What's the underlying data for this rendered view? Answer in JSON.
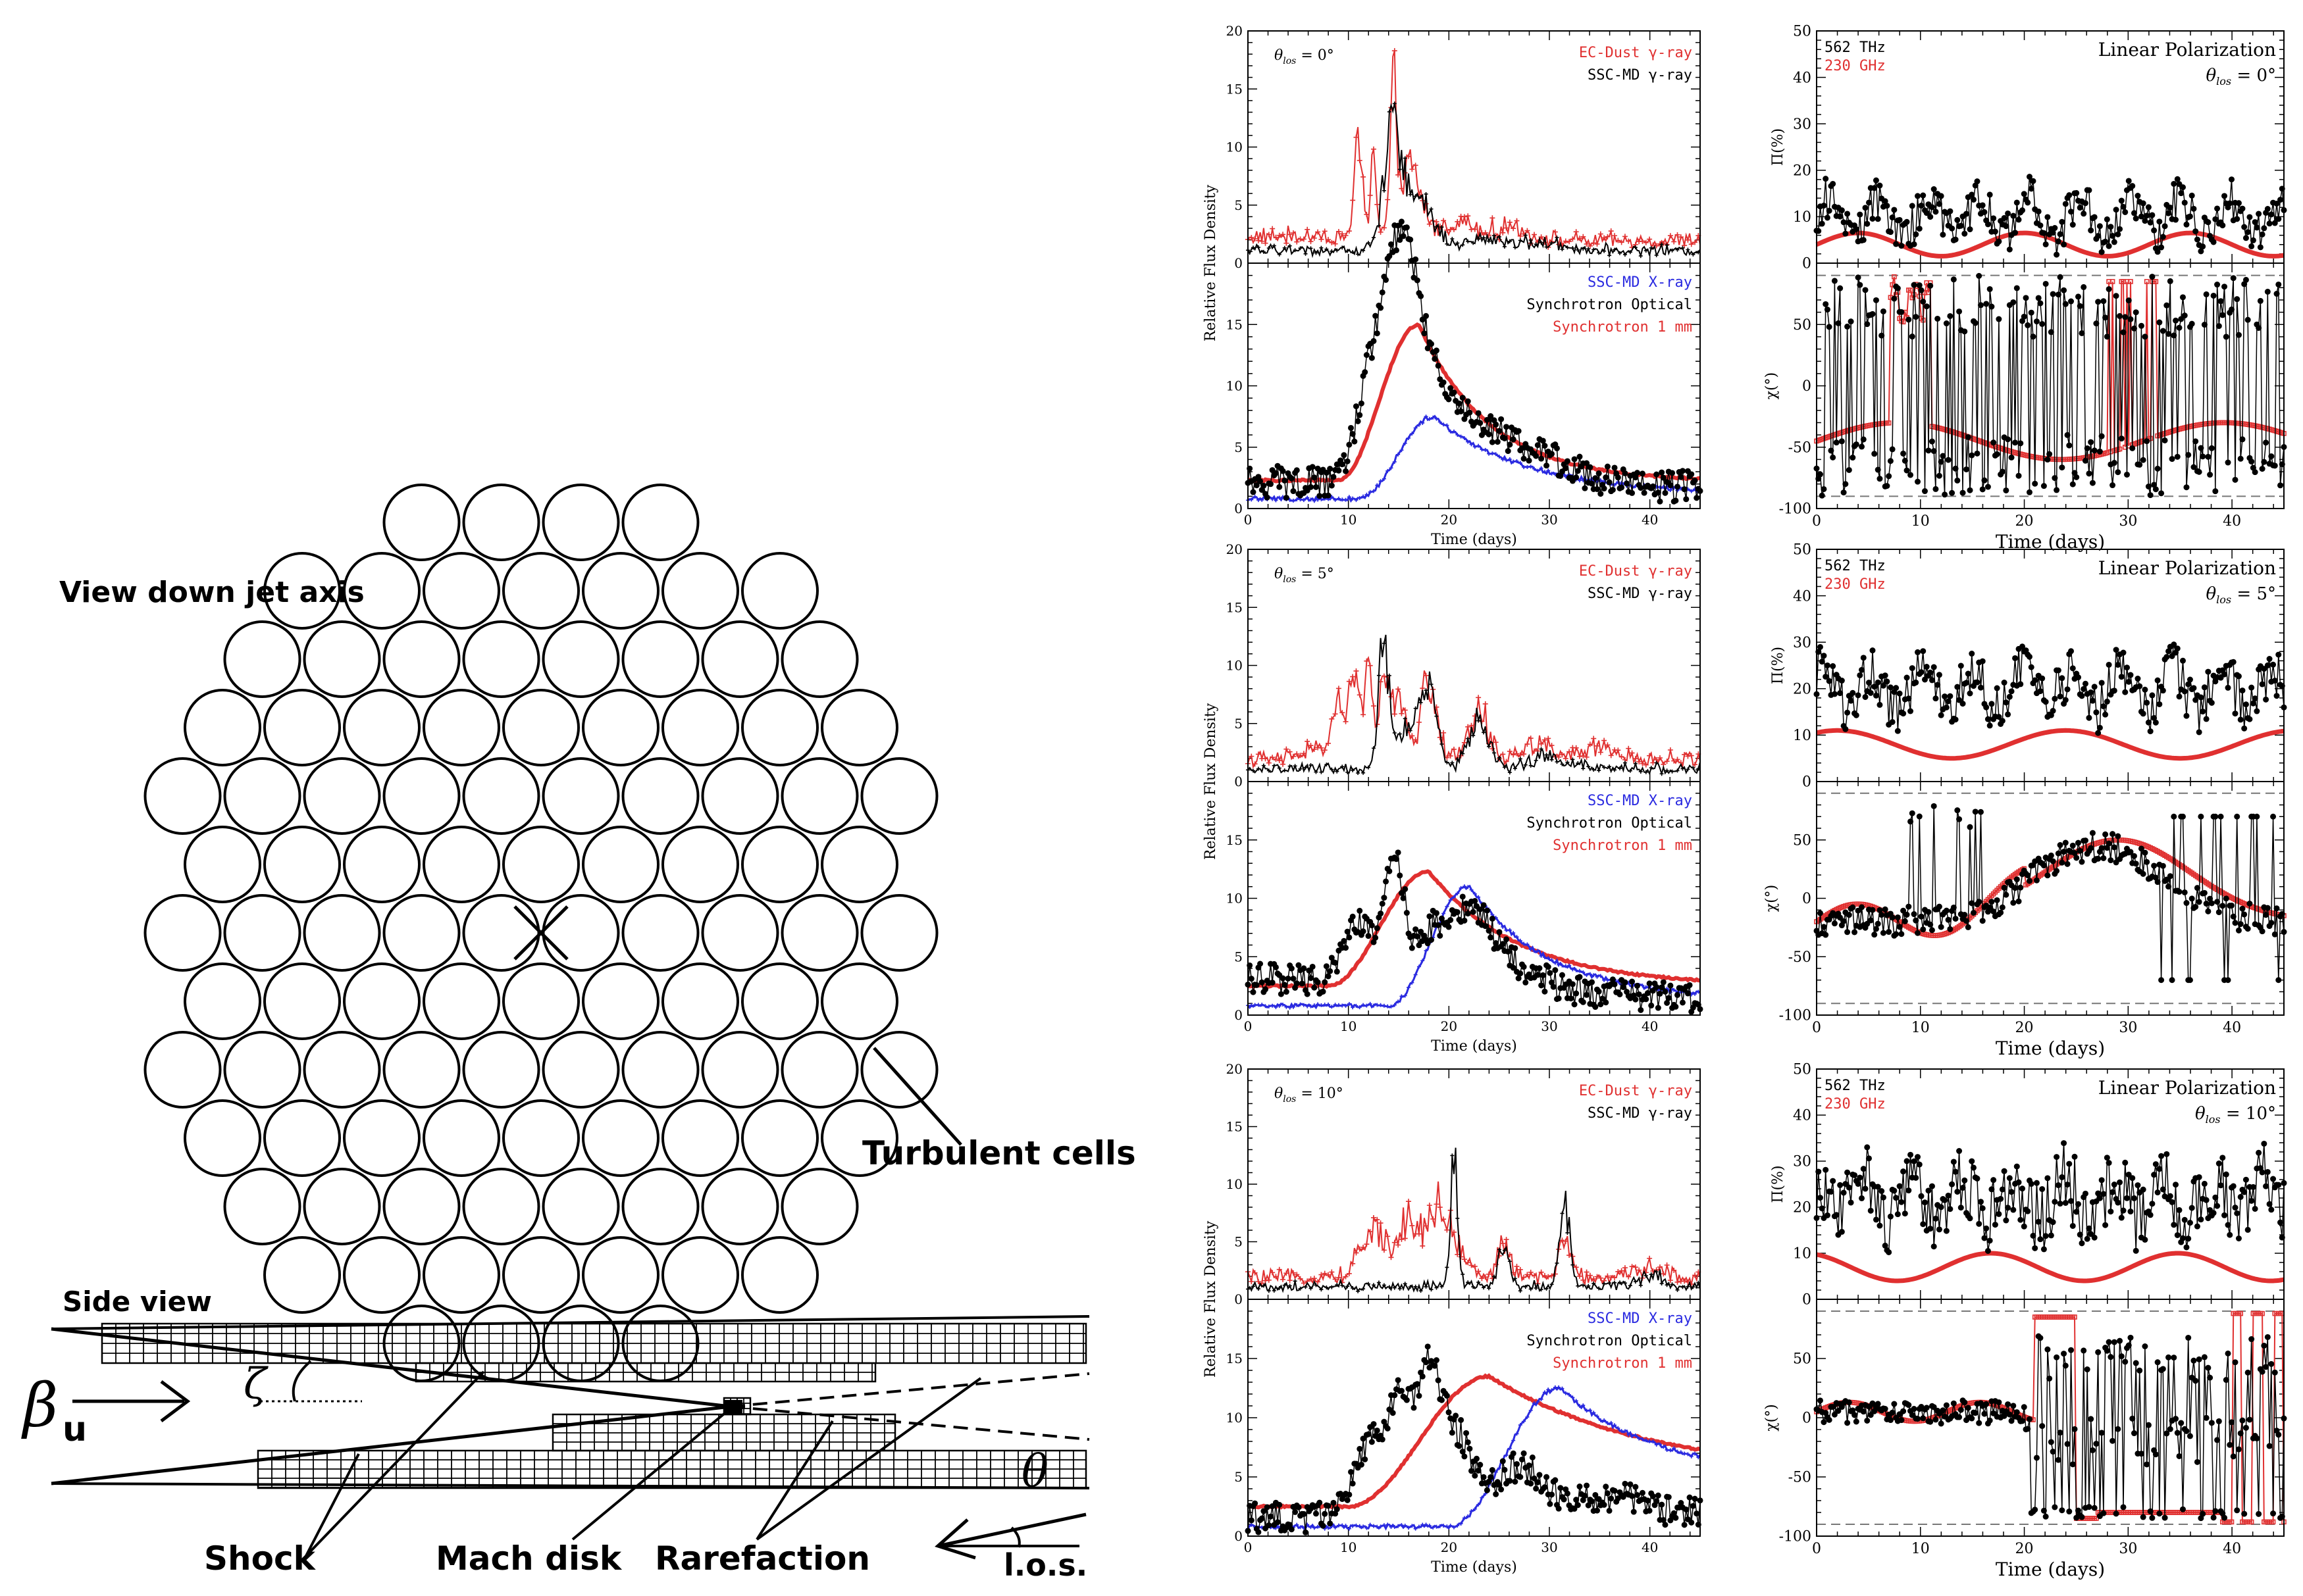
{
  "colors": {
    "black": "#000000",
    "red": "#e03030",
    "blue": "#2a2ae0",
    "grey_dash": "#777777"
  },
  "diagram": {
    "view_label": "View down jet axis",
    "side_label": "Side view",
    "turbulent_label": "Turbulent cells",
    "shock_label": "Shock",
    "mach_label": "Mach disk",
    "rarefaction_label": "Rarefaction",
    "beta_symbol": "β",
    "beta_sub": "u",
    "zeta_symbol": "ζ",
    "theta_symbol": "θ",
    "los_label": "l.o.s."
  },
  "chart_data": {
    "type": "line",
    "x_label": "Time (days)",
    "x_range": [
      0,
      45
    ],
    "x_ticks": [
      "0",
      "10",
      "20",
      "30",
      "40"
    ],
    "flux_ylabel": "Relative Flux Density",
    "pol_ylabel": "Π(%)",
    "chi_ylabel": "χ(°)",
    "gamma_ylim": [
      0,
      20
    ],
    "gamma_ticks": [
      "0",
      "5",
      "10",
      "15",
      "20"
    ],
    "lower_ylim": [
      0,
      20
    ],
    "lower_ticks": [
      "0",
      "5",
      "10",
      "15"
    ],
    "pol_ylim": [
      0,
      50
    ],
    "pol_ticks": [
      "0",
      "10",
      "20",
      "30",
      "40",
      "50"
    ],
    "chi_ylim": [
      -100,
      100
    ],
    "chi_ticks": [
      "-100",
      "-50",
      "0",
      "50"
    ],
    "chi_ref_lines": [
      90,
      -90
    ],
    "legend": {
      "ec_dust": "EC-Dust γ-ray",
      "ssc_gamma": "SSC-MD γ-ray",
      "ssc_xray": "SSC-MD X-ray",
      "sync_opt": "Synchrotron Optical",
      "sync_mm": "Synchrotron 1 mm",
      "freq_opt": "562 THz",
      "freq_mm": "230 GHz",
      "linpol": "Linear Polarization"
    },
    "panels": [
      {
        "theta_label": "θlos = 0°",
        "theta_value": "0°",
        "gamma_ec_peaks": [
          [
            5,
            0.4,
            12
          ],
          [
            11,
            8,
            0.4
          ],
          [
            12.5,
            9,
            0.25
          ],
          [
            14.5,
            10,
            0.3
          ],
          [
            16,
            6,
            1.2
          ],
          [
            21,
            1.5,
            1.5
          ],
          [
            26,
            1,
            2
          ]
        ],
        "gamma_ssc_peaks": [
          [
            14.5,
            10,
            0.9
          ],
          [
            17,
            4,
            1.5
          ],
          [
            24,
            1,
            2.5
          ],
          [
            30,
            0.5,
            2
          ]
        ],
        "xray": {
          "base": 0.8,
          "peak": 7.5,
          "start": 11,
          "rise": 7.5,
          "decay": 9,
          "end": 1.2
        },
        "opt": {
          "base": 2.2,
          "peaks": [
            [
              13,
              11,
              1.8
            ],
            [
              15.5,
              13,
              1.4
            ],
            [
              18,
              7,
              2.0
            ],
            [
              22,
              4,
              3.0
            ],
            [
              28,
              2.5,
              4.0
            ]
          ],
          "end": 1.8
        },
        "mm": {
          "base": 2.3,
          "peak": 15,
          "start": 9,
          "rise": 8,
          "decay": 7,
          "end": 2.2
        },
        "pol_opt": {
          "mean": 10,
          "spread": 6
        },
        "pol_mm": {
          "mean": 4,
          "amp": 2.5,
          "period": 16
        },
        "chi_opt": {
          "mode": "wrapping",
          "center": 10,
          "spread": 70
        },
        "chi_mm": {
          "mode": "wrapping_mm",
          "level": -60
        }
      },
      {
        "theta_label": "θlos = 5°",
        "theta_value": "5°",
        "gamma_ec_peaks": [
          [
            7,
            1,
            1.5
          ],
          [
            9,
            5,
            0.5
          ],
          [
            10.5,
            7,
            0.5
          ],
          [
            12,
            9,
            0.4
          ],
          [
            13.5,
            8,
            0.4
          ],
          [
            15,
            6,
            0.6
          ],
          [
            18,
            7,
            0.8
          ],
          [
            23,
            4,
            1.0
          ],
          [
            29,
            1.5,
            1.5
          ],
          [
            35,
            1,
            1.5
          ]
        ],
        "gamma_ssc_peaks": [
          [
            13.5,
            12,
            0.5
          ],
          [
            16,
            4,
            1.0
          ],
          [
            18,
            7,
            0.8
          ],
          [
            23,
            4,
            1.0
          ],
          [
            30,
            1,
            2
          ]
        ],
        "xray": {
          "base": 0.8,
          "peak": 11,
          "start": 14,
          "rise": 8,
          "decay": 8,
          "end": 1.3
        },
        "opt": {
          "base": 3.2,
          "peaks": [
            [
              11,
              5,
              1.5
            ],
            [
              14.5,
              11,
              1.0
            ],
            [
              18,
              4,
              1.5
            ],
            [
              22,
              6,
              2.0
            ],
            [
              26,
              2,
              3.0
            ]
          ],
          "end": 1.5
        },
        "mm": {
          "base": 2.5,
          "peak": 12.3,
          "start": 8,
          "rise": 10,
          "decay": 9,
          "end": 2.5
        },
        "pol_opt": {
          "mean": 20,
          "spread": 7
        },
        "pol_mm": {
          "mean": 8,
          "amp": 3,
          "period": 22
        },
        "chi_opt": {
          "mode": "smooth",
          "center": 0,
          "spread": 25
        },
        "chi_mm": {
          "mode": "smooth_mm",
          "level": 0
        }
      },
      {
        "theta_label": "θlos = 10°",
        "theta_value": "10°",
        "gamma_ec_peaks": [
          [
            11.5,
            2,
            1.0
          ],
          [
            13,
            3,
            1.0
          ],
          [
            16,
            5,
            1.2
          ],
          [
            19,
            6,
            1.0
          ],
          [
            21,
            2,
            1
          ],
          [
            25.5,
            3,
            0.6
          ],
          [
            31.5,
            3,
            0.6
          ],
          [
            40,
            1,
            1.2
          ]
        ],
        "gamma_ssc_peaks": [
          [
            20.5,
            11,
            0.35
          ],
          [
            25.5,
            3,
            0.6
          ],
          [
            31.5,
            7.5,
            0.5
          ],
          [
            40,
            1,
            1.2
          ]
        ],
        "xray": {
          "base": 0.8,
          "peak": 12.5,
          "start": 20,
          "rise": 11,
          "decay": 10,
          "end": 4.8
        },
        "opt": {
          "base": 1.5,
          "peaks": [
            [
              12,
              6,
              1.5
            ],
            [
              15,
              9,
              1.2
            ],
            [
              18,
              12,
              1.3
            ],
            [
              21,
              6,
              1.5
            ],
            [
              27,
              4,
              2.5
            ],
            [
              36,
              1.5,
              3
            ]
          ],
          "end": 2
        },
        "mm": {
          "base": 2.5,
          "peak": 13.5,
          "start": 10,
          "rise": 14,
          "decay": 16,
          "end": 5
        },
        "pol_opt": {
          "mean": 22,
          "spread": 10
        },
        "pol_mm": {
          "mean": 7,
          "amp": 3,
          "period": 18
        },
        "chi_opt": {
          "mode": "late_wrap",
          "center": 5,
          "spread": 30
        },
        "chi_mm": {
          "mode": "late_wrap_mm",
          "level": 0
        }
      }
    ]
  }
}
